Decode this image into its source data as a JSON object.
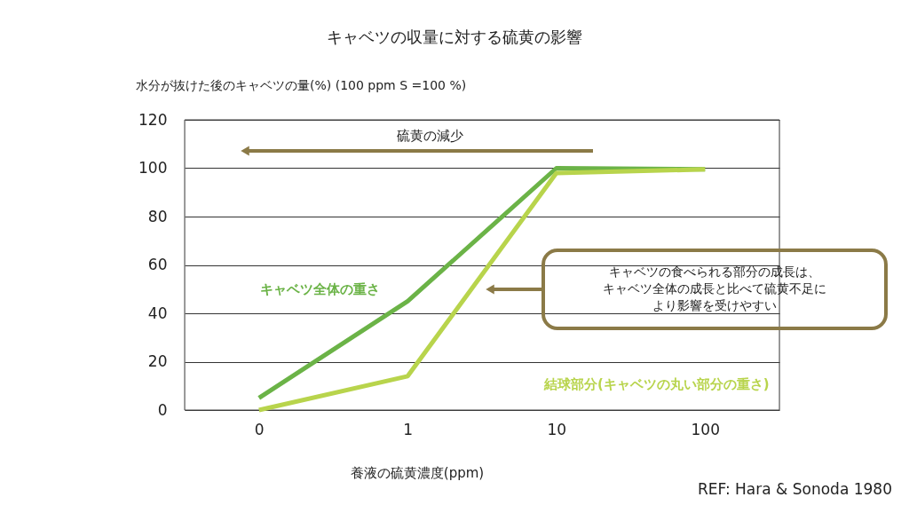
{
  "chart_data": {
    "type": "line",
    "title": "キャベツの収量に対する硫黄の影響",
    "ylabel": "水分が抜けた後のキャベツの量(%) (100 ppm S =100 %)",
    "xlabel": "養液の硫黄濃度(ppm)",
    "categories": [
      "0",
      "1",
      "10",
      "100"
    ],
    "series": [
      {
        "name": "キャベツ全体の重さ",
        "color": "#6bb347",
        "values": [
          5,
          45,
          100,
          99.5
        ]
      },
      {
        "name": "結球部分(キャベツの丸い部分の重さ)",
        "color": "#b8d44c",
        "values": [
          0,
          14,
          98,
          99.5
        ]
      }
    ],
    "ylim": [
      0,
      120
    ],
    "yticks": [
      0,
      20,
      40,
      60,
      80,
      100,
      120
    ],
    "grid": "y",
    "legend": false,
    "line_style": "solid",
    "annotations": [
      "硫黄の減少",
      "REF: Hara & Sonoda 1980",
      "キャベツの食べられる部分の成長は、",
      "キャベツ全体の成長と比べて硫黄不足に",
      "より影響を受けやすい"
    ]
  }
}
